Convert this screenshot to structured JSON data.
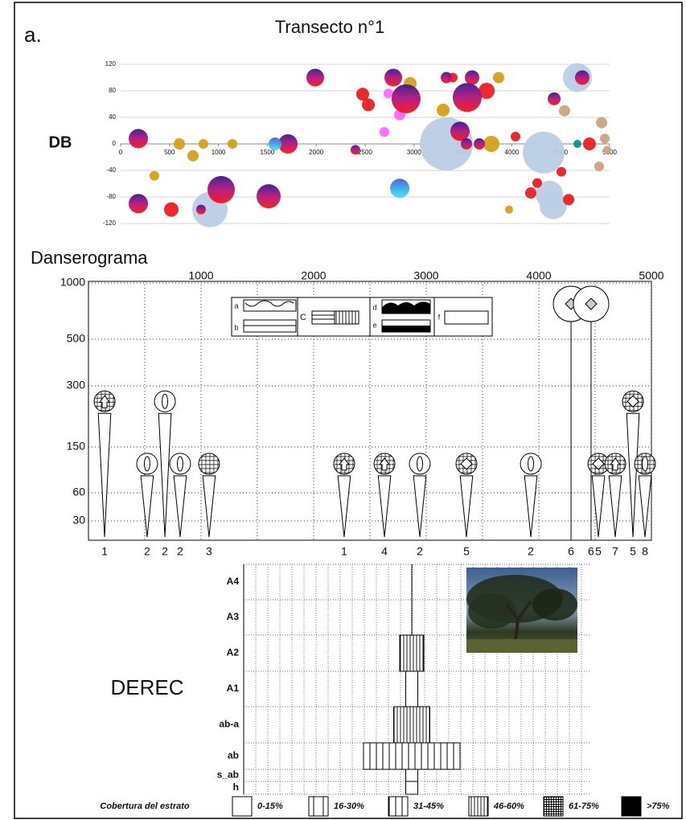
{
  "panel_label": "a.",
  "chart_data": [
    {
      "type": "bubble",
      "title": "Transecto n°1",
      "ylabel": "DB",
      "xlim": [
        0,
        5000
      ],
      "ylim": [
        -120,
        120
      ],
      "xticks": [
        0,
        500,
        1000,
        1500,
        2000,
        2500,
        3000,
        3500,
        4000,
        4500,
        5000
      ],
      "yticks": [
        120,
        80,
        40,
        0,
        -40,
        -80,
        -120
      ],
      "grid": true,
      "series": [
        {
          "color": "#b9cde5",
          "x": [
            913,
            3331,
            4326,
            4383,
            4424,
            4671
          ],
          "y": [
            -99,
            0,
            -13,
            -76,
            -93,
            100
          ],
          "size": [
            22,
            33,
            26,
            17,
            17,
            18
          ]
        },
        {
          "color": "#d4a017",
          "x": [
            345,
            600,
            740,
            847,
            1143,
            2961,
            3298,
            3865,
            3791,
            3972
          ],
          "y": [
            -48,
            0,
            -18,
            0,
            0,
            91,
            51,
            100,
            0,
            -99
          ],
          "size": [
            6,
            7,
            7,
            6,
            6,
            8,
            8,
            7,
            10,
            5
          ]
        },
        {
          "color": "#ee1c25",
          "x": [
            518,
            2475,
            2533,
            3396,
            3742,
            4038,
            4194,
            4260,
            4581,
            4507,
            4794
          ],
          "y": [
            -99,
            75,
            59,
            100,
            80,
            11,
            -74,
            -59,
            -84,
            -42,
            0
          ],
          "size": [
            9,
            8,
            8,
            6,
            10,
            6,
            7,
            6,
            7,
            6,
            8
          ]
        },
        {
          "color": "#ff66ff",
          "x": [
            2697,
            2738,
            2854
          ],
          "y": [
            18,
            76,
            44
          ],
          "size": [
            6,
            6,
            7
          ]
        },
        {
          "color": "#c8a47e",
          "x": [
            4539,
            4918,
            4951,
            4975,
            4893
          ],
          "y": [
            50,
            32,
            8,
            -9,
            -34
          ],
          "size": [
            7,
            7,
            6,
            5,
            6
          ]
        },
        {
          "color": "#00968f",
          "x": [
            4671
          ],
          "y": [
            0
          ],
          "size": [
            5
          ]
        },
        {
          "color": "purple-red",
          "x": [
            181,
            181,
            822,
            1028,
            1711,
            1513,
            1990,
            2401,
            2788,
            2919,
            3331,
            3470,
            3536,
            3594,
            3544,
            3668,
            4433,
            4720
          ],
          "y": [
            8,
            -90,
            -99,
            -69,
            0,
            -79,
            100,
            -9,
            100,
            68,
            100,
            19,
            0,
            100,
            70,
            0,
            68,
            100
          ],
          "size": [
            12,
            12,
            6,
            17,
            12,
            15,
            11,
            6,
            11,
            18,
            7,
            12,
            7,
            9,
            18,
            7,
            8,
            9
          ]
        },
        {
          "color": "blue-cyan",
          "x": [
            1579,
            2854
          ],
          "y": [
            0,
            -67
          ],
          "size": [
            8,
            12
          ]
        }
      ]
    },
    {
      "type": "danserogram",
      "title": "Danserograma",
      "xlim": [
        0,
        5000
      ],
      "xticks": [
        1000,
        2000,
        3000,
        4000,
        5000
      ],
      "ylim": [
        0,
        1000
      ],
      "yticks": [
        1000,
        500,
        300,
        150,
        60,
        30
      ],
      "inset_labels": [
        "a",
        "b",
        "C",
        "d",
        "e",
        "f",
        "E"
      ],
      "plants": {
        "x": [
          143,
          521,
          679,
          814,
          1071,
          2271,
          2629,
          2943,
          3357,
          3929,
          4286,
          4464,
          4529,
          4679,
          4836,
          4943
        ],
        "height": [
          262,
          117,
          262,
          117,
          117,
          117,
          117,
          117,
          117,
          117,
          814,
          814,
          117,
          117,
          262,
          117
        ],
        "form": [
          "grid-arrow",
          "leaf",
          "leaf",
          "leaf",
          "grid",
          "grid-arrow",
          "grid-arrow",
          "leaf",
          "grid-diamond",
          "leaf",
          "diamond",
          "diamond",
          "grid-diamond",
          "grid-arrow",
          "grid-diamond",
          "grid-leaf"
        ],
        "labels": [
          "1",
          "2",
          "2",
          "2",
          "3",
          "1",
          "4",
          "2",
          "5",
          "2",
          "6",
          "6",
          "5",
          "7",
          "5",
          "8"
        ]
      }
    },
    {
      "type": "derec",
      "title": "DEREC",
      "strata": [
        "A4",
        "A3",
        "A2",
        "A1",
        "ab-a",
        "ab",
        "s_ab",
        "h"
      ],
      "widths": [
        0,
        0,
        2,
        1,
        3,
        8,
        1,
        1
      ],
      "cover": [
        "0-15%",
        "0-15%",
        "46-60%",
        "0-15%",
        "46-60%",
        "31-45%",
        "0-15%",
        "0-15%"
      ],
      "legend_title": "Cobertura del estrato",
      "cover_classes": [
        "0-15%",
        "16-30%",
        "31-45%",
        "46-60%",
        "61-75%",
        ">75%"
      ]
    }
  ]
}
